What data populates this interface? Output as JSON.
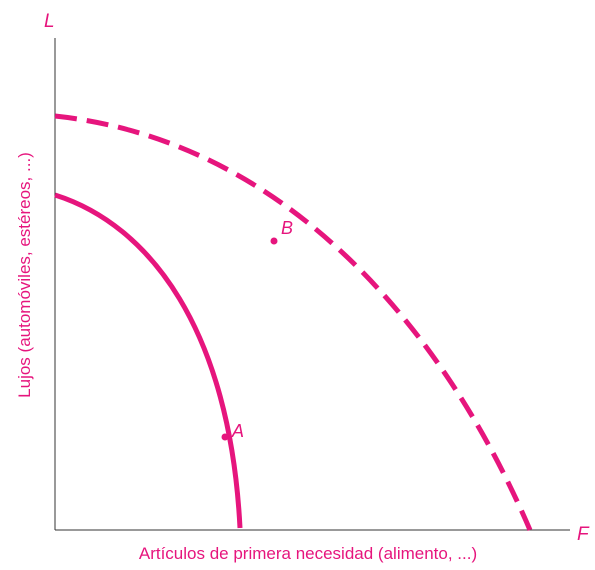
{
  "diagram": {
    "axes": {
      "y_axis_letter": "L",
      "x_axis_letter": "F",
      "y_axis_label": "Lujos (automóviles, estéreos, ...)",
      "x_axis_label": "Artículos de primera necesidad (alimento, ...)"
    },
    "curves": [
      {
        "name": "inner-frontier",
        "style": "solid"
      },
      {
        "name": "outer-frontier",
        "style": "dashed"
      }
    ],
    "points": [
      {
        "label": "A",
        "on_curve": "inner-frontier"
      },
      {
        "label": "B",
        "on_curve": "outer-frontier"
      }
    ],
    "colors": {
      "accent": "#e6157d",
      "axis": "#333333"
    }
  }
}
